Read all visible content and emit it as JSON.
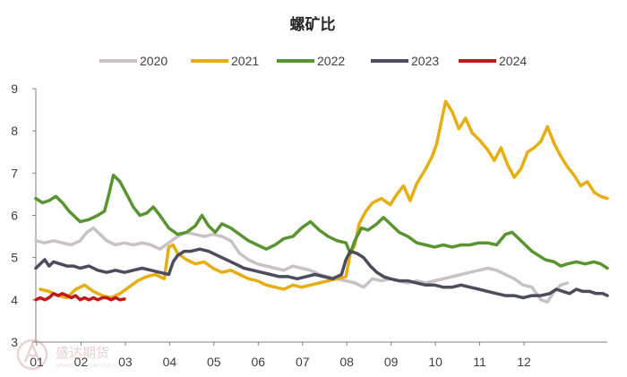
{
  "chart_data": {
    "type": "line",
    "title": "螺矿比",
    "xlabel": "",
    "ylabel": "",
    "ylim": [
      3,
      9
    ],
    "yticks": [
      "3",
      "4",
      "5",
      "6",
      "7",
      "8",
      "9"
    ],
    "categories": [
      "01",
      "02",
      "03",
      "04",
      "05",
      "06",
      "07",
      "08",
      "09",
      "10",
      "11",
      "12"
    ],
    "legend_position": "top",
    "grid": false,
    "series": [
      {
        "name": "2020",
        "color": "#c9c1c3",
        "points": [
          [
            0.0,
            5.4
          ],
          [
            0.2,
            5.35
          ],
          [
            0.4,
            5.4
          ],
          [
            0.6,
            5.35
          ],
          [
            0.8,
            5.3
          ],
          [
            1.0,
            5.4
          ],
          [
            1.15,
            5.6
          ],
          [
            1.3,
            5.7
          ],
          [
            1.45,
            5.55
          ],
          [
            1.6,
            5.4
          ],
          [
            1.8,
            5.3
          ],
          [
            2.0,
            5.35
          ],
          [
            2.2,
            5.3
          ],
          [
            2.4,
            5.35
          ],
          [
            2.6,
            5.3
          ],
          [
            2.8,
            5.2
          ],
          [
            3.0,
            5.35
          ],
          [
            3.2,
            5.5
          ],
          [
            3.4,
            5.6
          ],
          [
            3.6,
            5.55
          ],
          [
            3.8,
            5.5
          ],
          [
            4.0,
            5.55
          ],
          [
            4.2,
            5.5
          ],
          [
            4.4,
            5.4
          ],
          [
            4.6,
            5.1
          ],
          [
            4.8,
            4.95
          ],
          [
            5.0,
            4.85
          ],
          [
            5.2,
            4.8
          ],
          [
            5.4,
            4.75
          ],
          [
            5.6,
            4.7
          ],
          [
            5.8,
            4.8
          ],
          [
            6.0,
            4.75
          ],
          [
            6.2,
            4.7
          ],
          [
            6.4,
            4.6
          ],
          [
            6.6,
            4.55
          ],
          [
            6.8,
            4.5
          ],
          [
            7.0,
            4.45
          ],
          [
            7.2,
            4.4
          ],
          [
            7.4,
            4.3
          ],
          [
            7.6,
            4.5
          ],
          [
            7.8,
            4.45
          ],
          [
            8.0,
            4.5
          ],
          [
            8.2,
            4.45
          ],
          [
            8.4,
            4.4
          ],
          [
            8.6,
            4.45
          ],
          [
            8.8,
            4.4
          ],
          [
            9.0,
            4.45
          ],
          [
            9.2,
            4.5
          ],
          [
            9.4,
            4.55
          ],
          [
            9.6,
            4.6
          ],
          [
            9.8,
            4.65
          ],
          [
            10.0,
            4.7
          ],
          [
            10.2,
            4.75
          ],
          [
            10.4,
            4.7
          ],
          [
            10.6,
            4.6
          ],
          [
            10.8,
            4.5
          ],
          [
            11.0,
            4.35
          ],
          [
            11.2,
            4.3
          ],
          [
            11.4,
            4.0
          ],
          [
            11.55,
            3.95
          ],
          [
            11.7,
            4.2
          ],
          [
            11.85,
            4.35
          ],
          [
            12.0,
            4.4
          ]
        ]
      },
      {
        "name": "2021",
        "color": "#e6ae12",
        "points": [
          [
            0.1,
            4.25
          ],
          [
            0.3,
            4.2
          ],
          [
            0.5,
            4.1
          ],
          [
            0.7,
            4.05
          ],
          [
            0.9,
            4.25
          ],
          [
            1.1,
            4.35
          ],
          [
            1.3,
            4.2
          ],
          [
            1.5,
            4.1
          ],
          [
            1.7,
            4.05
          ],
          [
            1.9,
            4.15
          ],
          [
            2.1,
            4.3
          ],
          [
            2.3,
            4.45
          ],
          [
            2.5,
            4.55
          ],
          [
            2.7,
            4.6
          ],
          [
            2.9,
            4.5
          ],
          [
            3.0,
            5.25
          ],
          [
            3.1,
            5.3
          ],
          [
            3.2,
            5.1
          ],
          [
            3.4,
            4.95
          ],
          [
            3.6,
            4.85
          ],
          [
            3.8,
            4.9
          ],
          [
            4.0,
            4.75
          ],
          [
            4.2,
            4.65
          ],
          [
            4.4,
            4.7
          ],
          [
            4.6,
            4.6
          ],
          [
            4.8,
            4.5
          ],
          [
            5.0,
            4.45
          ],
          [
            5.2,
            4.35
          ],
          [
            5.4,
            4.3
          ],
          [
            5.6,
            4.25
          ],
          [
            5.8,
            4.35
          ],
          [
            6.0,
            4.3
          ],
          [
            6.2,
            4.35
          ],
          [
            6.4,
            4.4
          ],
          [
            6.6,
            4.45
          ],
          [
            6.8,
            4.5
          ],
          [
            7.0,
            4.55
          ],
          [
            7.1,
            5.1
          ],
          [
            7.2,
            5.3
          ],
          [
            7.3,
            5.8
          ],
          [
            7.45,
            6.1
          ],
          [
            7.6,
            6.3
          ],
          [
            7.8,
            6.4
          ],
          [
            8.0,
            6.25
          ],
          [
            8.15,
            6.5
          ],
          [
            8.3,
            6.7
          ],
          [
            8.45,
            6.35
          ],
          [
            8.6,
            6.75
          ],
          [
            8.8,
            7.1
          ],
          [
            8.95,
            7.4
          ],
          [
            9.05,
            7.7
          ],
          [
            9.15,
            8.2
          ],
          [
            9.25,
            8.7
          ],
          [
            9.4,
            8.45
          ],
          [
            9.55,
            8.05
          ],
          [
            9.7,
            8.3
          ],
          [
            9.85,
            7.95
          ],
          [
            10.0,
            7.8
          ],
          [
            10.2,
            7.55
          ],
          [
            10.35,
            7.3
          ],
          [
            10.5,
            7.6
          ],
          [
            10.65,
            7.2
          ],
          [
            10.8,
            6.9
          ],
          [
            10.95,
            7.1
          ],
          [
            11.1,
            7.5
          ],
          [
            11.25,
            7.6
          ],
          [
            11.4,
            7.75
          ],
          [
            11.55,
            8.1
          ],
          [
            11.7,
            7.7
          ],
          [
            11.85,
            7.4
          ],
          [
            12.0,
            7.15
          ],
          [
            12.15,
            6.95
          ],
          [
            12.3,
            6.7
          ],
          [
            12.45,
            6.8
          ],
          [
            12.6,
            6.55
          ],
          [
            12.75,
            6.45
          ],
          [
            12.9,
            6.4
          ]
        ]
      },
      {
        "name": "2022",
        "color": "#5a9430",
        "points": [
          [
            0.0,
            6.4
          ],
          [
            0.15,
            6.3
          ],
          [
            0.3,
            6.35
          ],
          [
            0.45,
            6.45
          ],
          [
            0.6,
            6.3
          ],
          [
            0.75,
            6.1
          ],
          [
            0.9,
            5.95
          ],
          [
            1.0,
            5.85
          ],
          [
            1.2,
            5.9
          ],
          [
            1.4,
            6.0
          ],
          [
            1.55,
            6.1
          ],
          [
            1.65,
            6.5
          ],
          [
            1.75,
            6.95
          ],
          [
            1.9,
            6.8
          ],
          [
            2.0,
            6.6
          ],
          [
            2.1,
            6.4
          ],
          [
            2.2,
            6.2
          ],
          [
            2.35,
            6.0
          ],
          [
            2.5,
            6.05
          ],
          [
            2.65,
            6.2
          ],
          [
            2.8,
            6.0
          ],
          [
            3.0,
            5.7
          ],
          [
            3.2,
            5.55
          ],
          [
            3.4,
            5.6
          ],
          [
            3.6,
            5.75
          ],
          [
            3.75,
            6.0
          ],
          [
            3.9,
            5.75
          ],
          [
            4.05,
            5.6
          ],
          [
            4.2,
            5.8
          ],
          [
            4.4,
            5.7
          ],
          [
            4.6,
            5.55
          ],
          [
            4.8,
            5.4
          ],
          [
            5.0,
            5.3
          ],
          [
            5.2,
            5.2
          ],
          [
            5.4,
            5.3
          ],
          [
            5.6,
            5.45
          ],
          [
            5.8,
            5.5
          ],
          [
            6.0,
            5.7
          ],
          [
            6.2,
            5.85
          ],
          [
            6.4,
            5.65
          ],
          [
            6.6,
            5.5
          ],
          [
            6.8,
            5.4
          ],
          [
            7.0,
            5.35
          ],
          [
            7.1,
            5.1
          ],
          [
            7.2,
            5.4
          ],
          [
            7.35,
            5.7
          ],
          [
            7.5,
            5.65
          ],
          [
            7.7,
            5.8
          ],
          [
            7.85,
            5.95
          ],
          [
            8.0,
            5.8
          ],
          [
            8.2,
            5.6
          ],
          [
            8.4,
            5.5
          ],
          [
            8.6,
            5.35
          ],
          [
            8.8,
            5.3
          ],
          [
            9.0,
            5.25
          ],
          [
            9.2,
            5.3
          ],
          [
            9.4,
            5.25
          ],
          [
            9.6,
            5.3
          ],
          [
            9.8,
            5.3
          ],
          [
            10.0,
            5.35
          ],
          [
            10.2,
            5.35
          ],
          [
            10.4,
            5.3
          ],
          [
            10.6,
            5.55
          ],
          [
            10.75,
            5.6
          ],
          [
            10.9,
            5.45
          ],
          [
            11.05,
            5.3
          ],
          [
            11.2,
            5.15
          ],
          [
            11.35,
            5.05
          ],
          [
            11.5,
            4.95
          ],
          [
            11.7,
            4.9
          ],
          [
            11.85,
            4.8
          ],
          [
            12.0,
            4.85
          ],
          [
            12.2,
            4.9
          ],
          [
            12.4,
            4.85
          ],
          [
            12.6,
            4.9
          ],
          [
            12.75,
            4.85
          ],
          [
            12.9,
            4.75
          ]
        ]
      },
      {
        "name": "2023",
        "color": "#4d4c5c",
        "points": [
          [
            0.0,
            4.75
          ],
          [
            0.1,
            4.85
          ],
          [
            0.2,
            4.95
          ],
          [
            0.3,
            4.8
          ],
          [
            0.4,
            4.9
          ],
          [
            0.55,
            4.85
          ],
          [
            0.7,
            4.8
          ],
          [
            0.85,
            4.8
          ],
          [
            1.0,
            4.75
          ],
          [
            1.2,
            4.8
          ],
          [
            1.4,
            4.7
          ],
          [
            1.6,
            4.65
          ],
          [
            1.8,
            4.7
          ],
          [
            2.0,
            4.65
          ],
          [
            2.2,
            4.7
          ],
          [
            2.4,
            4.75
          ],
          [
            2.6,
            4.7
          ],
          [
            2.8,
            4.65
          ],
          [
            3.0,
            4.6
          ],
          [
            3.1,
            4.9
          ],
          [
            3.2,
            5.05
          ],
          [
            3.35,
            5.15
          ],
          [
            3.5,
            5.15
          ],
          [
            3.7,
            5.2
          ],
          [
            3.9,
            5.15
          ],
          [
            4.1,
            5.05
          ],
          [
            4.3,
            4.95
          ],
          [
            4.5,
            4.85
          ],
          [
            4.7,
            4.75
          ],
          [
            4.9,
            4.7
          ],
          [
            5.1,
            4.65
          ],
          [
            5.3,
            4.6
          ],
          [
            5.5,
            4.55
          ],
          [
            5.7,
            4.55
          ],
          [
            5.9,
            4.5
          ],
          [
            6.1,
            4.55
          ],
          [
            6.3,
            4.6
          ],
          [
            6.5,
            4.55
          ],
          [
            6.7,
            4.5
          ],
          [
            6.9,
            4.6
          ],
          [
            7.0,
            4.95
          ],
          [
            7.1,
            5.15
          ],
          [
            7.25,
            5.1
          ],
          [
            7.4,
            5.0
          ],
          [
            7.55,
            4.8
          ],
          [
            7.7,
            4.65
          ],
          [
            7.85,
            4.55
          ],
          [
            8.0,
            4.5
          ],
          [
            8.2,
            4.45
          ],
          [
            8.4,
            4.45
          ],
          [
            8.6,
            4.4
          ],
          [
            8.8,
            4.35
          ],
          [
            9.0,
            4.35
          ],
          [
            9.2,
            4.3
          ],
          [
            9.4,
            4.3
          ],
          [
            9.6,
            4.35
          ],
          [
            9.8,
            4.3
          ],
          [
            10.0,
            4.25
          ],
          [
            10.2,
            4.2
          ],
          [
            10.4,
            4.15
          ],
          [
            10.6,
            4.1
          ],
          [
            10.8,
            4.1
          ],
          [
            11.0,
            4.05
          ],
          [
            11.2,
            4.1
          ],
          [
            11.4,
            4.1
          ],
          [
            11.6,
            4.15
          ],
          [
            11.75,
            4.25
          ],
          [
            11.9,
            4.2
          ],
          [
            12.05,
            4.15
          ],
          [
            12.2,
            4.25
          ],
          [
            12.35,
            4.2
          ],
          [
            12.5,
            4.2
          ],
          [
            12.65,
            4.15
          ],
          [
            12.8,
            4.15
          ],
          [
            12.9,
            4.1
          ]
        ]
      },
      {
        "name": "2024",
        "color": "#bf1a1a",
        "points": [
          [
            0.0,
            4.0
          ],
          [
            0.1,
            4.05
          ],
          [
            0.2,
            4.0
          ],
          [
            0.3,
            4.05
          ],
          [
            0.4,
            4.15
          ],
          [
            0.5,
            4.1
          ],
          [
            0.6,
            4.15
          ],
          [
            0.7,
            4.1
          ],
          [
            0.8,
            4.05
          ],
          [
            0.9,
            4.1
          ],
          [
            1.0,
            4.0
          ],
          [
            1.1,
            4.05
          ],
          [
            1.2,
            4.0
          ],
          [
            1.3,
            4.05
          ],
          [
            1.4,
            4.0
          ],
          [
            1.5,
            4.05
          ],
          [
            1.6,
            4.05
          ],
          [
            1.7,
            4.0
          ],
          [
            1.8,
            4.05
          ],
          [
            1.9,
            4.0
          ],
          [
            2.0,
            4.02
          ]
        ]
      }
    ]
  },
  "watermark": {
    "brand": "盛达期货",
    "sub": "SHENGDA FUTURES CO.,LTD"
  }
}
